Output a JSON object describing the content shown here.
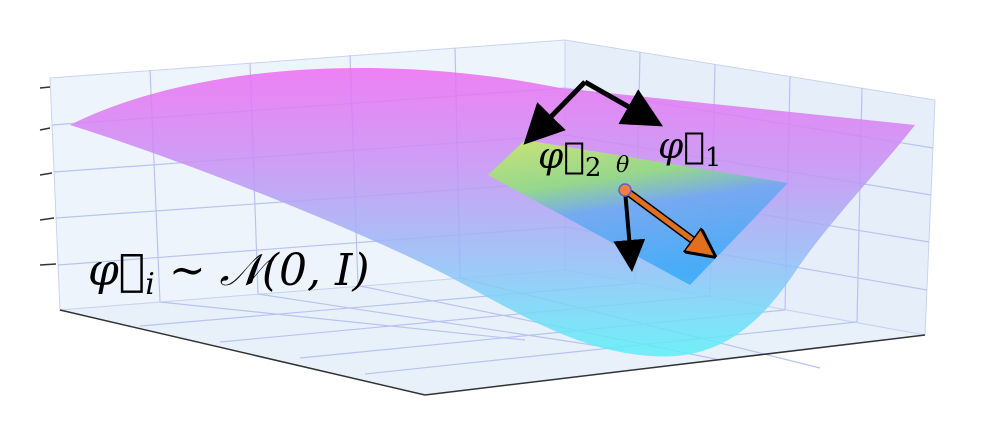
{
  "labels": {
    "phi2": {
      "base": "φ⃗",
      "sub": "2"
    },
    "phi1": {
      "base": "φ⃗",
      "sub": "1"
    },
    "theta": "θ",
    "formula": {
      "base": "φ⃗",
      "sub": "i",
      "rest": " ∼ 𝒩(0, I)"
    }
  }
}
